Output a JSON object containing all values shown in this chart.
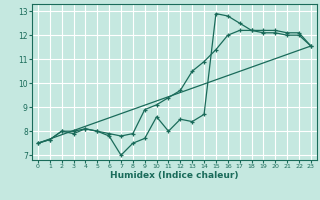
{
  "title": "",
  "xlabel": "Humidex (Indice chaleur)",
  "ylabel": "",
  "bg_color": "#c5e8e0",
  "grid_color": "#ffffff",
  "line_color": "#1a6b5a",
  "xlim": [
    -0.5,
    23.5
  ],
  "ylim": [
    6.8,
    13.3
  ],
  "xticks": [
    0,
    1,
    2,
    3,
    4,
    5,
    6,
    7,
    8,
    9,
    10,
    11,
    12,
    13,
    14,
    15,
    16,
    17,
    18,
    19,
    20,
    21,
    22,
    23
  ],
  "yticks": [
    7,
    8,
    9,
    10,
    11,
    12,
    13
  ],
  "line1_x": [
    0,
    1,
    2,
    3,
    4,
    5,
    6,
    7,
    8,
    9,
    10,
    11,
    12,
    13,
    14,
    15,
    16,
    17,
    18,
    19,
    20,
    21,
    22,
    23
  ],
  "line1_y": [
    7.5,
    7.65,
    8.0,
    7.9,
    8.1,
    8.0,
    7.8,
    7.0,
    7.5,
    7.7,
    8.6,
    8.0,
    8.5,
    8.4,
    8.7,
    12.9,
    12.8,
    12.5,
    12.2,
    12.1,
    12.1,
    12.0,
    12.0,
    11.55
  ],
  "line2_x": [
    0,
    1,
    2,
    3,
    4,
    5,
    6,
    7,
    8,
    9,
    10,
    11,
    12,
    13,
    14,
    15,
    16,
    17,
    18,
    19,
    20,
    21,
    22,
    23
  ],
  "line2_y": [
    7.5,
    7.65,
    8.0,
    8.0,
    8.1,
    8.0,
    7.9,
    7.8,
    7.9,
    8.9,
    9.1,
    9.4,
    9.7,
    10.5,
    10.9,
    11.4,
    12.0,
    12.2,
    12.2,
    12.2,
    12.2,
    12.1,
    12.1,
    11.55
  ],
  "line3_x": [
    0,
    23
  ],
  "line3_y": [
    7.5,
    11.55
  ]
}
